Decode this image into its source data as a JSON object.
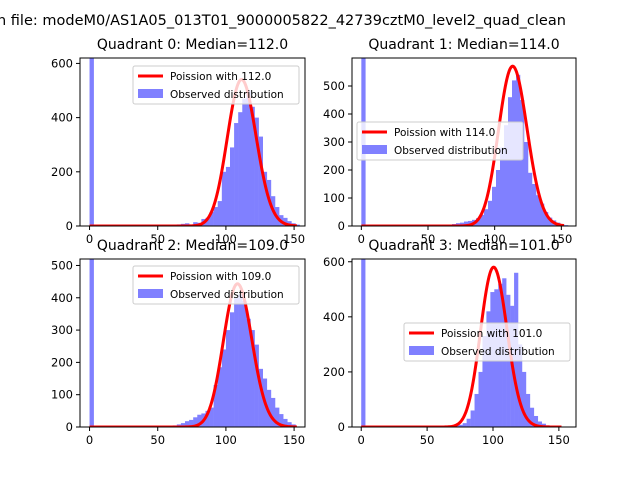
{
  "figure": {
    "suptitle": "n file: modeM0/AS1A05_013T01_9000005822_42739cztM0_level2_quad_clean"
  },
  "chart_data": [
    {
      "type": "bar",
      "title": "Quadrant 0: Median=112.0",
      "median": 112.0,
      "xlim": [
        -7,
        158
      ],
      "ylim": [
        0,
        620
      ],
      "xticks": [
        0,
        50,
        100,
        150
      ],
      "yticks": [
        0,
        200,
        400,
        600
      ],
      "legend": {
        "placement": "upper-right",
        "entries": [
          "Poission with 112.0",
          "Observed distribution"
        ]
      },
      "series": [
        {
          "name": "Poission with 112.0",
          "kind": "line",
          "lambda": 112.0,
          "color": "#ff0000"
        },
        {
          "name": "Observed distribution",
          "kind": "histogram",
          "color": "#8080ff",
          "bin_width": 3.2,
          "bins": [
            [
              0,
              630
            ],
            [
              55,
              2
            ],
            [
              58,
              3
            ],
            [
              61,
              4
            ],
            [
              64,
              6
            ],
            [
              67,
              8
            ],
            [
              70,
              10
            ],
            [
              73,
              5
            ],
            [
              76,
              14
            ],
            [
              79,
              12
            ],
            [
              82,
              26
            ],
            [
              85,
              30
            ],
            [
              88,
              52
            ],
            [
              91,
              70
            ],
            [
              94,
              92
            ],
            [
              97,
              200
            ],
            [
              100,
              218
            ],
            [
              103,
              290
            ],
            [
              106,
              380
            ],
            [
              109,
              420
            ],
            [
              112,
              470
            ],
            [
              115,
              500
            ],
            [
              118,
              440
            ],
            [
              121,
              400
            ],
            [
              124,
              330
            ],
            [
              127,
              200
            ],
            [
              130,
              170
            ],
            [
              133,
              110
            ],
            [
              136,
              70
            ],
            [
              139,
              40
            ],
            [
              142,
              30
            ],
            [
              145,
              18
            ],
            [
              148,
              10
            ],
            [
              151,
              5
            ]
          ]
        }
      ]
    },
    {
      "type": "bar",
      "title": "Quadrant 1: Median=114.0",
      "median": 114.0,
      "xlim": [
        -7,
        161
      ],
      "ylim": [
        0,
        600
      ],
      "xticks": [
        0,
        50,
        100,
        150
      ],
      "yticks": [
        0,
        100,
        200,
        300,
        400,
        500
      ],
      "legend": {
        "placement": "center-right",
        "entries": [
          "Poission with 114.0",
          "Observed distribution"
        ]
      },
      "series": [
        {
          "name": "Poission with 114.0",
          "kind": "line",
          "lambda": 114.0,
          "color": "#ff0000"
        },
        {
          "name": "Observed distribution",
          "kind": "histogram",
          "color": "#8080ff",
          "bin_width": 3.2,
          "bins": [
            [
              0,
              600
            ],
            [
              56,
              2
            ],
            [
              59,
              3
            ],
            [
              62,
              4
            ],
            [
              65,
              5
            ],
            [
              68,
              7
            ],
            [
              71,
              10
            ],
            [
              74,
              12
            ],
            [
              77,
              16
            ],
            [
              80,
              18
            ],
            [
              83,
              22
            ],
            [
              86,
              28
            ],
            [
              89,
              40
            ],
            [
              92,
              60
            ],
            [
              95,
              90
            ],
            [
              98,
              140
            ],
            [
              101,
              200
            ],
            [
              104,
              280
            ],
            [
              107,
              360
            ],
            [
              110,
              460
            ],
            [
              113,
              520
            ],
            [
              116,
              540
            ],
            [
              119,
              450
            ],
            [
              122,
              300
            ],
            [
              125,
              190
            ],
            [
              128,
              150
            ],
            [
              131,
              110
            ],
            [
              134,
              80
            ],
            [
              137,
              50
            ],
            [
              140,
              30
            ],
            [
              143,
              20
            ],
            [
              146,
              12
            ],
            [
              149,
              6
            ],
            [
              152,
              3
            ]
          ]
        }
      ]
    },
    {
      "type": "bar",
      "title": "Quadrant 2: Median=109.0",
      "median": 109.0,
      "xlim": [
        -7,
        158
      ],
      "ylim": [
        0,
        520
      ],
      "xticks": [
        0,
        50,
        100,
        150
      ],
      "yticks": [
        0,
        100,
        200,
        300,
        400,
        500
      ],
      "legend": {
        "placement": "upper-right",
        "entries": [
          "Poission with 109.0",
          "Observed distribution"
        ]
      },
      "series": [
        {
          "name": "Poission with 109.0",
          "kind": "line",
          "lambda": 109.0,
          "color": "#ff0000"
        },
        {
          "name": "Observed distribution",
          "kind": "histogram",
          "color": "#8080ff",
          "bin_width": 3.2,
          "bins": [
            [
              0,
              520
            ],
            [
              55,
              2
            ],
            [
              58,
              3
            ],
            [
              61,
              5
            ],
            [
              64,
              8
            ],
            [
              67,
              12
            ],
            [
              70,
              18
            ],
            [
              73,
              22
            ],
            [
              76,
              30
            ],
            [
              79,
              38
            ],
            [
              82,
              42
            ],
            [
              85,
              50
            ],
            [
              88,
              60
            ],
            [
              91,
              130
            ],
            [
              94,
              185
            ],
            [
              97,
              240
            ],
            [
              100,
              300
            ],
            [
              103,
              355
            ],
            [
              106,
              400
            ],
            [
              109,
              410
            ],
            [
              112,
              390
            ],
            [
              115,
              335
            ],
            [
              118,
              300
            ],
            [
              121,
              255
            ],
            [
              124,
              180
            ],
            [
              127,
              150
            ],
            [
              130,
              115
            ],
            [
              133,
              90
            ],
            [
              136,
              60
            ],
            [
              139,
              40
            ],
            [
              142,
              25
            ],
            [
              145,
              15
            ],
            [
              148,
              8
            ]
          ]
        }
      ]
    },
    {
      "type": "bar",
      "title": "Quadrant 3: Median=101.0",
      "median": 101.0,
      "xlim": [
        -7,
        163
      ],
      "ylim": [
        0,
        610
      ],
      "xticks": [
        0,
        50,
        100,
        150
      ],
      "yticks": [
        0,
        200,
        400,
        600
      ],
      "legend": {
        "placement": "center-right",
        "entries": [
          "Poission with 101.0",
          "Observed distribution"
        ]
      },
      "series": [
        {
          "name": "Poission with 101.0",
          "kind": "line",
          "lambda": 101.0,
          "color": "#ff0000"
        },
        {
          "name": "Observed distribution",
          "kind": "histogram",
          "color": "#8080ff",
          "bin_width": 3.2,
          "bins": [
            [
              0,
              620
            ],
            [
              62,
              2
            ],
            [
              65,
              3
            ],
            [
              68,
              4
            ],
            [
              71,
              6
            ],
            [
              74,
              8
            ],
            [
              77,
              14
            ],
            [
              80,
              30
            ],
            [
              83,
              60
            ],
            [
              86,
              120
            ],
            [
              89,
              200
            ],
            [
              92,
              330
            ],
            [
              95,
              420
            ],
            [
              98,
              490
            ],
            [
              101,
              500
            ],
            [
              104,
              520
            ],
            [
              107,
              540
            ],
            [
              110,
              480
            ],
            [
              113,
              440
            ],
            [
              116,
              560
            ],
            [
              119,
              300
            ],
            [
              122,
              200
            ],
            [
              125,
              120
            ],
            [
              128,
              70
            ],
            [
              131,
              40
            ],
            [
              134,
              20
            ],
            [
              137,
              12
            ],
            [
              140,
              6
            ],
            [
              143,
              3
            ]
          ]
        }
      ]
    }
  ]
}
